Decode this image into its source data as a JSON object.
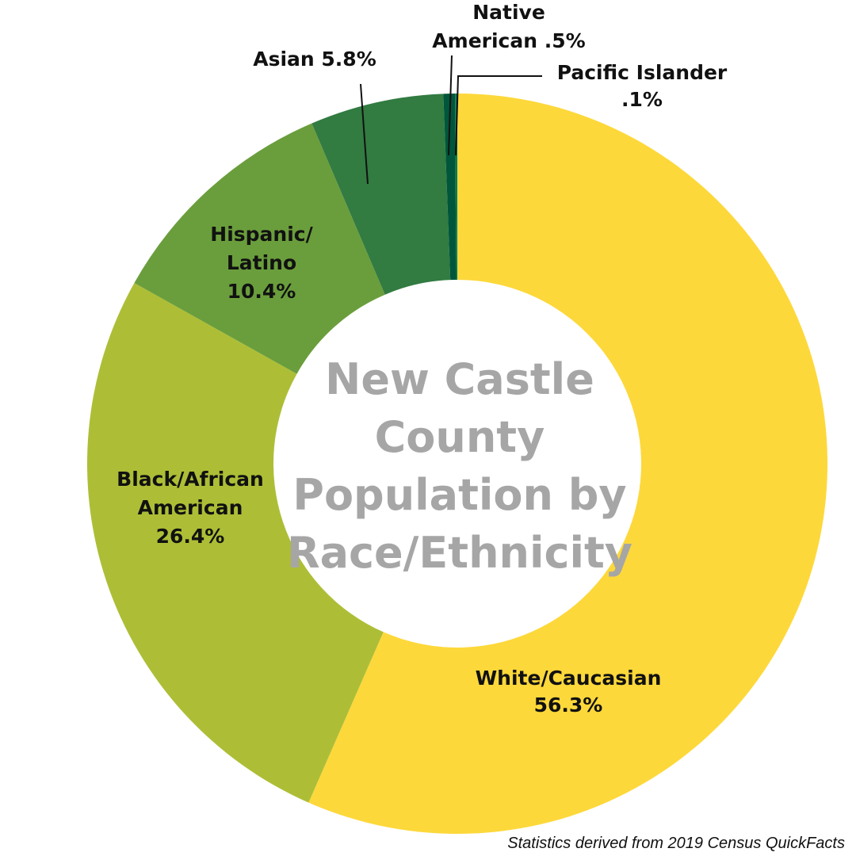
{
  "chart_data": {
    "type": "pie",
    "donut": true,
    "title_lines": [
      "New Castle",
      "County",
      "Population by",
      "Race/Ethnicity"
    ],
    "slices": [
      {
        "name": "White/Caucasian",
        "label_lines": [
          "White/Caucasian",
          "56.3%"
        ],
        "value": 56.3,
        "color": "#fdd83a"
      },
      {
        "name": "Black/African American",
        "label_lines": [
          "Black/African",
          "American",
          "26.4%"
        ],
        "value": 26.4,
        "color": "#adbe36"
      },
      {
        "name": "Hispanic/Latino",
        "label_lines": [
          "Hispanic/",
          "Latino",
          "10.4%"
        ],
        "value": 10.4,
        "color": "#6a9e3c"
      },
      {
        "name": "Asian",
        "label_lines": [
          "Asian 5.8%"
        ],
        "value": 5.8,
        "color": "#327b41"
      },
      {
        "name": "Native American",
        "label_lines": [
          "Native",
          "American .5%"
        ],
        "value": 0.5,
        "color": "#00563a"
      },
      {
        "name": "Pacific Islander",
        "label_lines": [
          "Pacific Islander",
          ".1%"
        ],
        "value": 0.1,
        "color": "#0a7a52"
      }
    ],
    "legend": "none"
  },
  "footer": {
    "source": "Statistics derived from 2019 Census QuickFacts"
  }
}
